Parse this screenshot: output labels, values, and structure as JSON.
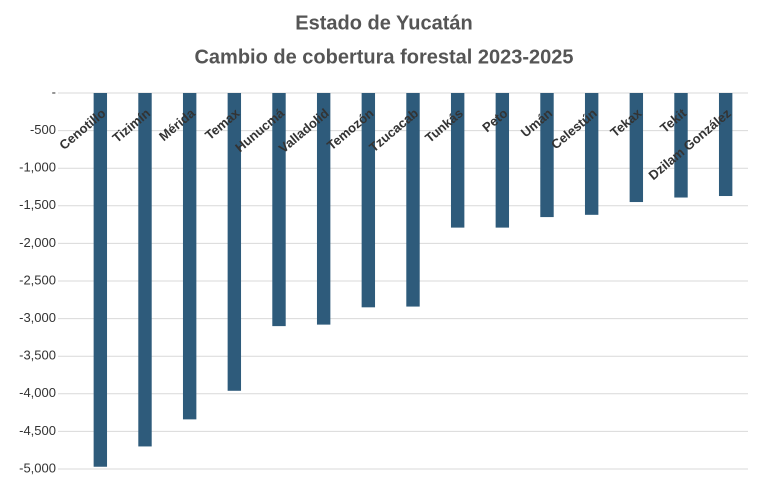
{
  "chart_data": {
    "type": "bar",
    "title": "Estado de Yucatán",
    "subtitle": "Cambio de cobertura forestal 2023-2025",
    "categories": [
      "Cenotillo",
      "Tizimín",
      "Mérida",
      "Temax",
      "Hunucmá",
      "Valladolid",
      "Temozón",
      "Tzucacab",
      "Tunkás",
      "Peto",
      "Umán",
      "Celestún",
      "Tekax",
      "Tekit",
      "Dzilam González"
    ],
    "values": [
      -4970,
      -4700,
      -4340,
      -3960,
      -3100,
      -3080,
      -2850,
      -2840,
      -1790,
      -1790,
      -1650,
      -1620,
      -1450,
      -1390,
      -1370
    ],
    "color": "#2e5b7b",
    "label_color": "#e0301e",
    "ylim": [
      -5000,
      0
    ],
    "yticks": [
      {
        "value": 0,
        "label": "-"
      },
      -500,
      {
        "value": -1000,
        "label": "-1,000"
      },
      {
        "value": -1500,
        "label": "-1,500"
      },
      {
        "value": -2000,
        "label": "-2,000"
      },
      {
        "value": -2500,
        "label": "-2,500"
      },
      {
        "value": -3000,
        "label": "-3,000"
      },
      {
        "value": -3500,
        "label": "-3,500"
      },
      {
        "value": -4000,
        "label": "-4,000"
      },
      {
        "value": -4500,
        "label": "-4,500"
      },
      {
        "value": -5000,
        "label": "-5,000"
      }
    ],
    "grid": true
  }
}
